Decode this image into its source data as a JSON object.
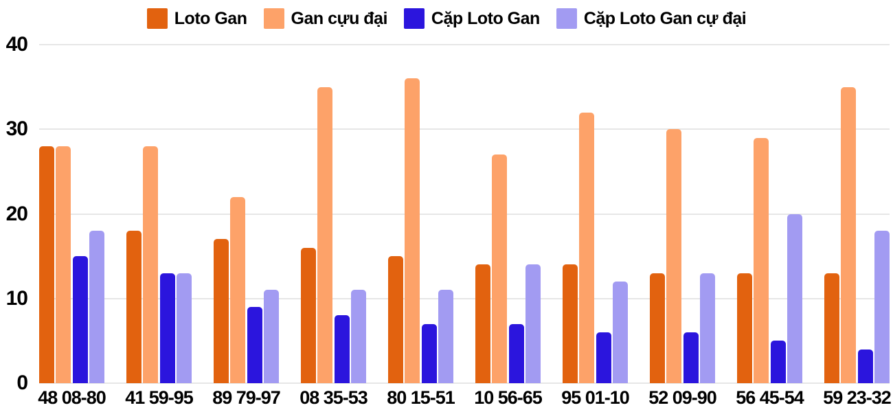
{
  "chart_data": {
    "type": "bar",
    "title": "",
    "xlabel": "",
    "ylabel": "",
    "categories": [
      "48 08-80",
      "41 59-95",
      "89 79-97",
      "08 35-53",
      "80 15-51",
      "10 56-65",
      "95 01-10",
      "52 09-90",
      "56 45-54",
      "59 23-32"
    ],
    "series": [
      {
        "name": "Loto Gan",
        "color": "#e2620f",
        "values": [
          28,
          18,
          17,
          16,
          15,
          14,
          14,
          13,
          13,
          13
        ]
      },
      {
        "name": "Gan cựu đại",
        "color": "#fda269",
        "values": [
          28,
          28,
          22,
          35,
          36,
          27,
          32,
          30,
          29,
          35
        ]
      },
      {
        "name": "Cặp Loto Gan",
        "color": "#2b15dd",
        "values": [
          15,
          13,
          9,
          8,
          7,
          7,
          6,
          6,
          5,
          4
        ]
      },
      {
        "name": "Cặp Loto Gan cự đại",
        "color": "#a29bf2",
        "values": [
          18,
          13,
          11,
          11,
          11,
          14,
          12,
          13,
          20,
          18
        ]
      }
    ],
    "ylim": [
      0,
      40
    ],
    "yticks": [
      0,
      10,
      20,
      30,
      40
    ],
    "grid": true,
    "legend_position": "top"
  },
  "colors": {
    "background": "#ffffff",
    "grid_line": "#e6e6e6",
    "axis_text": "#000000"
  }
}
